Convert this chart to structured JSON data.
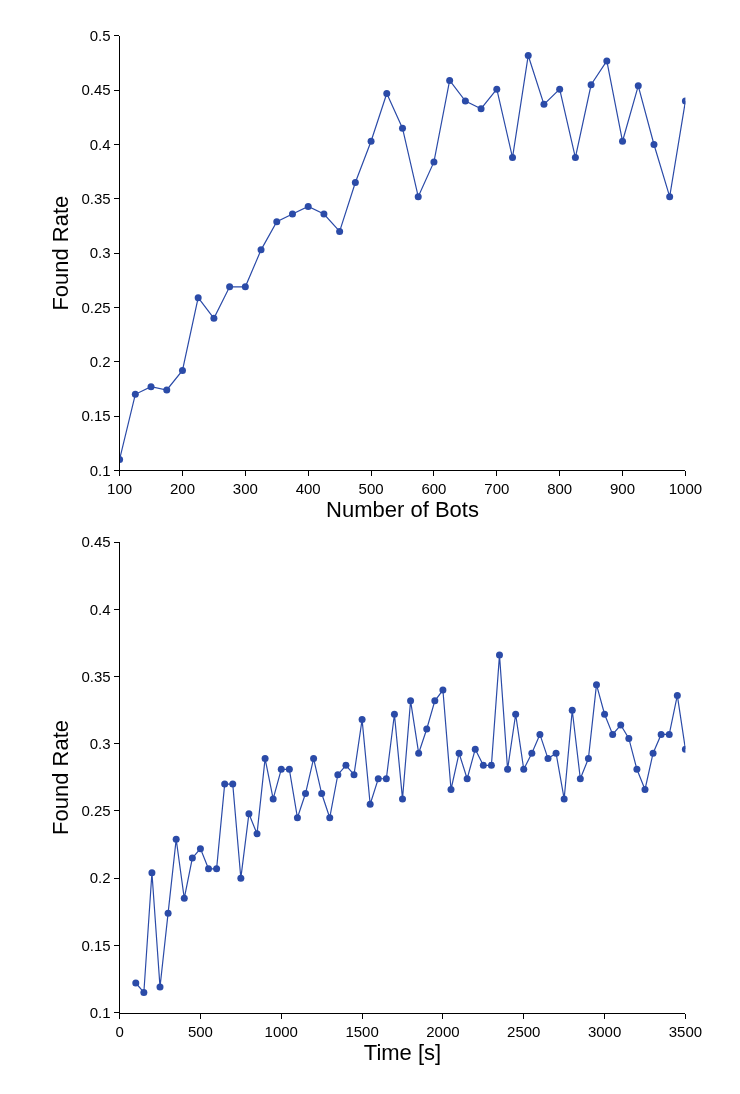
{
  "chart_data": [
    {
      "type": "line",
      "xlabel": "Number of Bots",
      "ylabel": "Found Rate",
      "marker": "circle",
      "line_style": "solid",
      "x": [
        100,
        125,
        150,
        175,
        200,
        225,
        250,
        275,
        300,
        325,
        350,
        375,
        400,
        425,
        450,
        475,
        500,
        525,
        550,
        575,
        600,
        625,
        650,
        675,
        700,
        725,
        750,
        775,
        800,
        825,
        850,
        875,
        900,
        925,
        950,
        975,
        1000
      ],
      "series": [
        {
          "color": "#2b4ba8",
          "values": [
            0.11,
            0.17,
            0.177,
            0.174,
            0.192,
            0.259,
            0.24,
            0.269,
            0.269,
            0.303,
            0.329,
            0.336,
            0.343,
            0.336,
            0.32,
            0.365,
            0.403,
            0.447,
            0.415,
            0.352,
            0.384,
            0.459,
            0.44,
            0.433,
            0.451,
            0.388,
            0.482,
            0.437,
            0.451,
            0.388,
            0.455,
            0.477,
            0.403,
            0.454,
            0.4,
            0.352,
            0.44
          ]
        }
      ],
      "xlim": [
        100,
        1000
      ],
      "xticks": [
        100,
        200,
        300,
        400,
        500,
        600,
        700,
        800,
        900,
        1000
      ],
      "ylim": [
        0.1,
        0.5
      ],
      "yticks": [
        0.1,
        0.15,
        0.2,
        0.25,
        0.3,
        0.35,
        0.4,
        0.45,
        0.5
      ]
    },
    {
      "type": "line",
      "xlabel": "Time [s]",
      "ylabel": "Found Rate",
      "marker": "circle",
      "line_style": "solid",
      "x": [
        100,
        150,
        200,
        250,
        300,
        350,
        400,
        450,
        500,
        550,
        600,
        650,
        700,
        750,
        800,
        850,
        900,
        950,
        1000,
        1050,
        1100,
        1150,
        1200,
        1250,
        1300,
        1350,
        1400,
        1450,
        1500,
        1550,
        1600,
        1650,
        1700,
        1750,
        1800,
        1850,
        1900,
        1950,
        2000,
        2050,
        2100,
        2150,
        2200,
        2250,
        2300,
        2350,
        2400,
        2450,
        2500,
        2550,
        2600,
        2650,
        2700,
        2750,
        2800,
        2850,
        2900,
        2950,
        3000,
        3050,
        3100,
        3150,
        3200,
        3250,
        3300,
        3350,
        3400,
        3450,
        3500
      ],
      "series": [
        {
          "color": "#2b4ba8",
          "values": [
            0.122,
            0.115,
            0.204,
            0.119,
            0.174,
            0.229,
            0.185,
            0.215,
            0.222,
            0.207,
            0.207,
            0.27,
            0.27,
            0.2,
            0.248,
            0.233,
            0.289,
            0.259,
            0.281,
            0.281,
            0.245,
            0.263,
            0.289,
            0.263,
            0.245,
            0.277,
            0.284,
            0.277,
            0.318,
            0.255,
            0.274,
            0.274,
            0.322,
            0.259,
            0.332,
            0.293,
            0.311,
            0.332,
            0.34,
            0.266,
            0.293,
            0.274,
            0.296,
            0.284,
            0.284,
            0.366,
            0.281,
            0.322,
            0.281,
            0.293,
            0.307,
            0.289,
            0.293,
            0.259,
            0.325,
            0.274,
            0.289,
            0.344,
            0.322,
            0.307,
            0.314,
            0.304,
            0.281,
            0.266,
            0.293,
            0.307,
            0.307,
            0.336,
            0.296
          ]
        }
      ],
      "xlim": [
        0,
        3500
      ],
      "xticks": [
        0,
        500,
        1000,
        1500,
        2000,
        2500,
        3000,
        3500
      ],
      "ylim": [
        0.1,
        0.45
      ],
      "yticks": [
        0.1,
        0.15,
        0.2,
        0.25,
        0.3,
        0.35,
        0.4,
        0.45
      ]
    }
  ]
}
